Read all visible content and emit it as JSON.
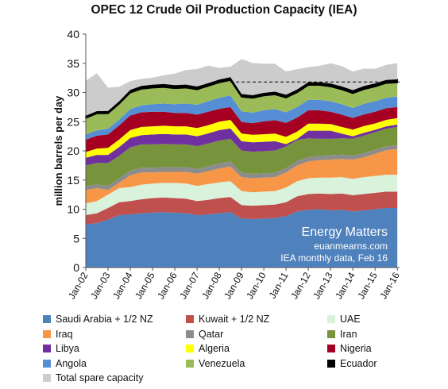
{
  "chart_data": {
    "type": "area",
    "title": "OPEC 12 Crude Oil Production Capacity (IEA)",
    "ylabel": "million barrels per day",
    "xlabel": "",
    "ylim": [
      0,
      40
    ],
    "yticks": [
      0,
      5,
      10,
      15,
      20,
      25,
      30,
      35,
      40
    ],
    "xlim": [
      2002,
      2016.1
    ],
    "xticks": [
      "Jan-02",
      "Jan-03",
      "Jan-04",
      "Jan-05",
      "Jan-06",
      "Jan-07",
      "Jan-08",
      "Jan-09",
      "Jan-10",
      "Jan-11",
      "Jan-12",
      "Jan-13",
      "Jan-14",
      "Jan-15",
      "Jan-16"
    ],
    "grid": false,
    "stacked": true,
    "annotation": {
      "lines": [
        "Energy Matters",
        "euanmearns.com",
        "IEA monthly data, Feb 16"
      ],
      "position": "bottom-right"
    },
    "reference_line": {
      "style": "dashed",
      "value": 31.8,
      "x_start": 2008.5,
      "x_end": 2016.1
    },
    "x_points": [
      2002.0,
      2002.5,
      2003.0,
      2003.5,
      2004.0,
      2004.5,
      2005.0,
      2005.5,
      2006.0,
      2006.5,
      2007.0,
      2007.5,
      2008.0,
      2008.5,
      2009.0,
      2009.5,
      2010.0,
      2010.5,
      2011.0,
      2011.5,
      2012.0,
      2012.5,
      2013.0,
      2013.5,
      2014.0,
      2014.5,
      2015.0,
      2015.5,
      2016.0
    ],
    "series": [
      {
        "name": "Saudi Arabia + 1/2 NZ",
        "color": "#4f81bd",
        "values": [
          7.4,
          7.6,
          8.2,
          9.0,
          9.1,
          9.3,
          9.4,
          9.5,
          9.4,
          9.3,
          9.0,
          9.1,
          9.3,
          9.5,
          8.4,
          8.3,
          8.4,
          8.5,
          8.8,
          9.6,
          9.9,
          10.0,
          9.8,
          9.9,
          9.6,
          9.8,
          10.0,
          10.2,
          10.2
        ]
      },
      {
        "name": "Kuwait + 1/2 NZ",
        "color": "#c0504d",
        "values": [
          1.6,
          1.7,
          2.0,
          2.2,
          2.3,
          2.4,
          2.5,
          2.5,
          2.5,
          2.5,
          2.4,
          2.5,
          2.6,
          2.6,
          2.3,
          2.3,
          2.3,
          2.3,
          2.4,
          2.6,
          2.7,
          2.7,
          2.8,
          2.8,
          2.8,
          2.8,
          2.8,
          2.8,
          2.8
        ]
      },
      {
        "name": "UAE",
        "color": "#d9f2dc",
        "values": [
          2.0,
          2.1,
          2.3,
          2.4,
          2.4,
          2.5,
          2.5,
          2.5,
          2.6,
          2.6,
          2.6,
          2.7,
          2.7,
          2.7,
          2.4,
          2.3,
          2.3,
          2.3,
          2.5,
          2.6,
          2.7,
          2.7,
          2.8,
          2.8,
          2.8,
          2.9,
          2.9,
          2.9,
          2.9
        ]
      },
      {
        "name": "Iraq",
        "color": "#f79646",
        "values": [
          2.3,
          2.2,
          0.8,
          0.9,
          2.0,
          2.1,
          1.9,
          1.9,
          1.9,
          2.0,
          2.1,
          2.2,
          2.4,
          2.5,
          2.4,
          2.4,
          2.4,
          2.4,
          2.6,
          2.7,
          2.9,
          3.0,
          3.1,
          3.1,
          3.3,
          3.4,
          3.8,
          4.2,
          4.4
        ]
      },
      {
        "name": "Qatar",
        "color": "#8c8c8c",
        "values": [
          0.6,
          0.65,
          0.7,
          0.75,
          0.8,
          0.8,
          0.8,
          0.8,
          0.8,
          0.8,
          0.8,
          0.85,
          0.85,
          0.85,
          0.75,
          0.75,
          0.75,
          0.75,
          0.75,
          0.75,
          0.75,
          0.75,
          0.75,
          0.75,
          0.7,
          0.7,
          0.7,
          0.7,
          0.7
        ]
      },
      {
        "name": "Iran",
        "color": "#77933c",
        "values": [
          3.6,
          3.7,
          3.9,
          3.9,
          4.0,
          4.0,
          4.0,
          4.0,
          3.9,
          3.9,
          3.9,
          3.9,
          3.9,
          3.9,
          3.8,
          3.8,
          3.8,
          3.8,
          3.7,
          3.6,
          3.2,
          2.9,
          2.8,
          2.8,
          2.9,
          3.0,
          3.0,
          3.0,
          3.1
        ]
      },
      {
        "name": "Libya",
        "color": "#7030a0",
        "values": [
          1.3,
          1.35,
          1.4,
          1.5,
          1.6,
          1.6,
          1.7,
          1.7,
          1.7,
          1.7,
          1.7,
          1.75,
          1.8,
          1.8,
          1.6,
          1.6,
          1.6,
          1.6,
          0.4,
          0.2,
          1.3,
          1.4,
          1.4,
          0.8,
          0.4,
          0.5,
          0.4,
          0.4,
          0.4
        ]
      },
      {
        "name": "Algeria",
        "color": "#ffff00",
        "values": [
          1.0,
          1.1,
          1.2,
          1.3,
          1.35,
          1.4,
          1.4,
          1.4,
          1.4,
          1.4,
          1.4,
          1.4,
          1.45,
          1.45,
          1.3,
          1.3,
          1.3,
          1.3,
          1.25,
          1.25,
          1.2,
          1.2,
          1.15,
          1.15,
          1.15,
          1.15,
          1.1,
          1.1,
          1.1
        ]
      },
      {
        "name": "Nigeria",
        "color": "#a50021",
        "values": [
          2.1,
          2.2,
          2.3,
          2.4,
          2.5,
          2.5,
          2.5,
          2.4,
          2.3,
          2.3,
          2.3,
          2.3,
          2.2,
          2.2,
          2.0,
          2.0,
          2.2,
          2.3,
          2.4,
          2.4,
          2.3,
          2.3,
          2.1,
          2.1,
          2.0,
          2.0,
          2.0,
          2.0,
          1.9
        ]
      },
      {
        "name": "Angola",
        "color": "#558ed5",
        "values": [
          0.9,
          0.9,
          1.0,
          1.0,
          1.1,
          1.2,
          1.3,
          1.4,
          1.5,
          1.6,
          1.7,
          1.8,
          1.9,
          2.0,
          1.8,
          1.8,
          1.9,
          1.9,
          1.8,
          1.8,
          1.8,
          1.8,
          1.8,
          1.8,
          1.7,
          1.8,
          1.8,
          1.8,
          1.8
        ]
      },
      {
        "name": "Venezuela",
        "color": "#9bbb59",
        "values": [
          2.8,
          2.9,
          2.6,
          2.7,
          2.8,
          2.8,
          2.8,
          2.8,
          2.7,
          2.7,
          2.6,
          2.6,
          2.6,
          2.6,
          2.5,
          2.5,
          2.5,
          2.5,
          2.5,
          2.5,
          2.5,
          2.5,
          2.5,
          2.5,
          2.5,
          2.5,
          2.5,
          2.5,
          2.4
        ]
      },
      {
        "name": "Ecuador",
        "color": "#000000",
        "values": [
          0.4,
          0.4,
          0.42,
          0.44,
          0.5,
          0.52,
          0.53,
          0.54,
          0.55,
          0.55,
          0.52,
          0.51,
          0.52,
          0.52,
          0.48,
          0.48,
          0.48,
          0.49,
          0.5,
          0.5,
          0.5,
          0.51,
          0.52,
          0.53,
          0.54,
          0.55,
          0.55,
          0.54,
          0.54
        ]
      },
      {
        "name": "Total spare capacity",
        "color": "#cccccc",
        "values": [
          6.0,
          6.5,
          4.0,
          2.5,
          1.5,
          1.2,
          1.2,
          1.5,
          2.0,
          2.5,
          3.0,
          3.0,
          2.0,
          1.8,
          6.0,
          5.5,
          5.0,
          4.8,
          4.0,
          3.5,
          2.6,
          2.8,
          3.5,
          3.5,
          3.2,
          3.0,
          2.5,
          2.6,
          2.8
        ]
      }
    ]
  }
}
